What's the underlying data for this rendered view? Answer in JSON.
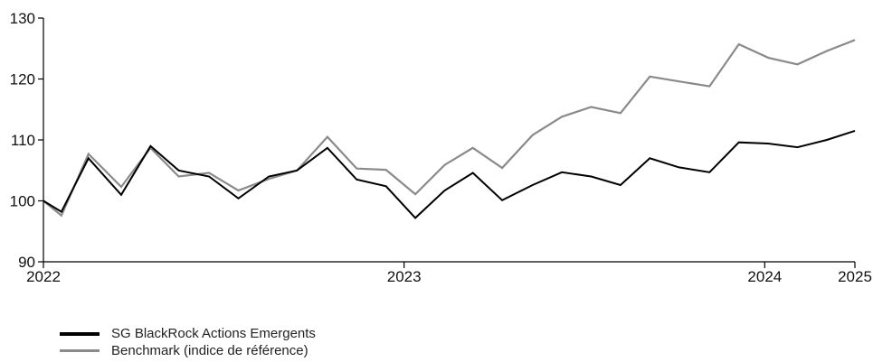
{
  "colors": {
    "fund": "#000000",
    "benchmark": "#8a8a8a",
    "axis": "#000000"
  },
  "chart_data": {
    "type": "line",
    "title": "",
    "xlabel": "",
    "ylabel": "",
    "ylim": [
      90,
      130
    ],
    "xlim": [
      0,
      36
    ],
    "y_ticks": [
      90,
      100,
      110,
      120,
      130
    ],
    "x_ticks": [
      {
        "x": 0,
        "label": "2022"
      },
      {
        "x": 16,
        "label": "2023"
      },
      {
        "x": 32,
        "label": "2024"
      },
      {
        "x": 36,
        "label": "2025"
      }
    ],
    "grid": false,
    "legend_position": "bottom-left",
    "series": [
      {
        "name": "SG BlackRock Actions Emergents",
        "color": "#000000",
        "points": [
          [
            0,
            100
          ],
          [
            0.8,
            98.2
          ],
          [
            2,
            107
          ],
          [
            3.45,
            101
          ],
          [
            4.75,
            109
          ],
          [
            6,
            105
          ],
          [
            7.35,
            104
          ],
          [
            8.65,
            100.4
          ],
          [
            10,
            104
          ],
          [
            11.25,
            105
          ],
          [
            12.6,
            108.7
          ],
          [
            13.9,
            103.5
          ],
          [
            15.2,
            102.4
          ],
          [
            16.5,
            97.2
          ],
          [
            17.8,
            101.7
          ],
          [
            19.05,
            104.6
          ],
          [
            20.35,
            100.1
          ],
          [
            21.7,
            102.6
          ],
          [
            23,
            104.7
          ],
          [
            24.3,
            104
          ],
          [
            25.6,
            102.6
          ],
          [
            26.9,
            107
          ],
          [
            28.2,
            105.5
          ],
          [
            29.55,
            104.7
          ],
          [
            30.85,
            109.6
          ],
          [
            32.15,
            109.4
          ],
          [
            33.45,
            108.8
          ],
          [
            34.75,
            110
          ],
          [
            36,
            111.5
          ]
        ]
      },
      {
        "name": "Benchmark (indice de référence)",
        "color": "#8a8a8a",
        "points": [
          [
            0,
            100
          ],
          [
            0.8,
            97.6
          ],
          [
            2,
            107.7
          ],
          [
            3.45,
            102.3
          ],
          [
            4.75,
            108.7
          ],
          [
            6,
            104
          ],
          [
            7.35,
            104.6
          ],
          [
            8.65,
            101.7
          ],
          [
            10,
            103.6
          ],
          [
            11.25,
            105
          ],
          [
            12.6,
            110.5
          ],
          [
            13.9,
            105.3
          ],
          [
            15.2,
            105.1
          ],
          [
            16.5,
            101.1
          ],
          [
            17.8,
            105.9
          ],
          [
            19.05,
            108.7
          ],
          [
            20.35,
            105.4
          ],
          [
            21.7,
            110.8
          ],
          [
            23,
            113.8
          ],
          [
            24.3,
            115.4
          ],
          [
            25.6,
            114.4
          ],
          [
            26.9,
            120.4
          ],
          [
            28.2,
            119.6
          ],
          [
            29.55,
            118.8
          ],
          [
            30.85,
            125.7
          ],
          [
            32.15,
            123.5
          ],
          [
            33.45,
            122.4
          ],
          [
            34.75,
            124.6
          ],
          [
            36,
            126.4
          ]
        ]
      }
    ]
  }
}
